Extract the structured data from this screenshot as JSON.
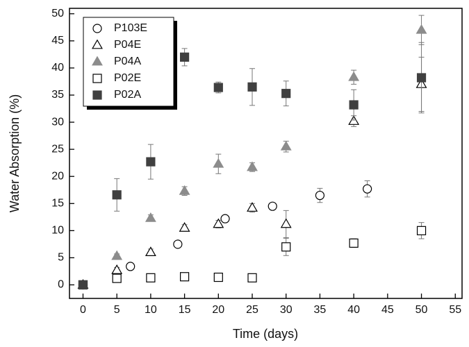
{
  "chart_data": {
    "type": "scatter",
    "xlabel": "Time (days)",
    "ylabel": "Water Absorption (%)",
    "xlim": [
      -2,
      56
    ],
    "ylim": [
      -2.5,
      51
    ],
    "xticks": [
      0,
      5,
      10,
      15,
      20,
      25,
      30,
      35,
      40,
      45,
      50,
      55
    ],
    "yticks": [
      0,
      5,
      10,
      15,
      20,
      25,
      30,
      35,
      40,
      45,
      50
    ],
    "grid": false,
    "legend": "upper left",
    "series": [
      {
        "name": "P103E",
        "marker": "circle",
        "filled": false,
        "color": "#000000",
        "x": [
          0,
          7,
          14,
          21,
          28,
          35,
          42
        ],
        "values": [
          0,
          3.4,
          7.5,
          12.2,
          14.5,
          16.5,
          17.7
        ],
        "errors": [
          0.3,
          0.3,
          0.3,
          0.4,
          0.5,
          1.3,
          1.5
        ]
      },
      {
        "name": "P04E",
        "marker": "triangle",
        "filled": false,
        "color": "#000000",
        "x": [
          0,
          5,
          10,
          15,
          20,
          25,
          30,
          40,
          50
        ],
        "values": [
          0,
          2.7,
          6,
          10.5,
          11.2,
          14.2,
          11.2,
          30.2,
          37
        ],
        "errors": [
          0.3,
          0.5,
          0.6,
          0.6,
          0.7,
          0.8,
          2.5,
          1,
          5
        ]
      },
      {
        "name": "P04A",
        "marker": "triangle",
        "filled": true,
        "color": "#8c8c8c",
        "x": [
          5,
          10,
          15,
          20,
          25,
          30,
          40,
          50
        ],
        "values": [
          5.3,
          12.3,
          17.3,
          22.3,
          21.7,
          25.5,
          38.3,
          47
        ],
        "errors": [
          0.4,
          0.6,
          0.8,
          1.8,
          0.8,
          1,
          1.3,
          2.7
        ]
      },
      {
        "name": "P02E",
        "marker": "square",
        "filled": false,
        "color": "#000000",
        "x": [
          0,
          5,
          10,
          15,
          20,
          25,
          30,
          40,
          50
        ],
        "values": [
          0,
          1.2,
          1.3,
          1.5,
          1.4,
          1.3,
          7,
          7.7,
          10
        ],
        "errors": [
          0.3,
          0.3,
          0.3,
          0.3,
          0.3,
          0.3,
          1.6,
          0.8,
          1.5
        ]
      },
      {
        "name": "P02A",
        "marker": "square",
        "filled": true,
        "color": "#404040",
        "x": [
          0,
          5,
          10,
          15,
          20,
          25,
          30,
          40,
          50
        ],
        "values": [
          0,
          16.6,
          22.7,
          42,
          36.4,
          36.5,
          35.3,
          33.2,
          38.2
        ],
        "errors": [
          0.3,
          3,
          3.2,
          1.6,
          1,
          3.4,
          2.3,
          2.8,
          6.5
        ]
      }
    ]
  }
}
